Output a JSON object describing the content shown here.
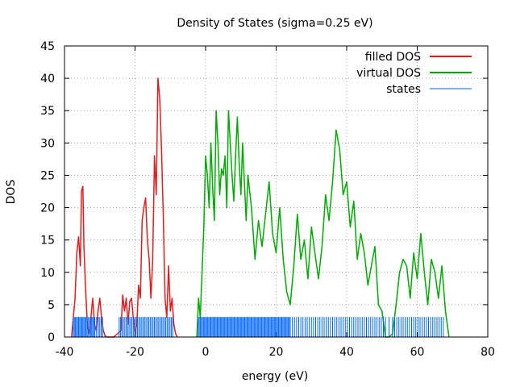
{
  "chart_data": {
    "type": "line",
    "title": "Density of States (sigma=0.25 eV)",
    "xlabel": "energy (eV)",
    "ylabel": "DOS",
    "xlim": [
      -40,
      80
    ],
    "ylim": [
      0,
      45
    ],
    "x_ticks": [
      -40,
      -20,
      0,
      20,
      40,
      60,
      80
    ],
    "y_ticks": [
      0,
      5,
      10,
      15,
      20,
      25,
      30,
      35,
      40,
      45
    ],
    "grid": true,
    "legend_position": "top-right",
    "series": [
      {
        "name": "filled DOS",
        "color": "#e41a1c",
        "x": [
          -38,
          -37,
          -36.5,
          -36,
          -35.5,
          -35.2,
          -34.8,
          -34.5,
          -34,
          -33.5,
          -33,
          -32.5,
          -32,
          -31.5,
          -31,
          -30.5,
          -30,
          -29.5,
          -29,
          -28.5,
          -28,
          -27,
          -26,
          -25,
          -24,
          -23.5,
          -23,
          -22.5,
          -22,
          -21.5,
          -21,
          -20.5,
          -20,
          -19.5,
          -19,
          -18.5,
          -18,
          -17.5,
          -17,
          -16.5,
          -16,
          -15.5,
          -15,
          -14.5,
          -14,
          -13.5,
          -13,
          -12.5,
          -12,
          -11.5,
          -11,
          -10.5,
          -10,
          -9.5,
          -9,
          -8.5,
          -8
        ],
        "y": [
          0,
          6,
          13,
          15.5,
          11,
          22.5,
          23.3,
          14,
          7,
          2,
          0.5,
          3,
          6,
          2,
          1,
          4,
          6,
          3,
          1,
          0.2,
          0,
          0,
          0,
          0.5,
          1,
          6.5,
          4,
          6,
          2,
          5.5,
          6,
          3,
          0.5,
          2,
          8,
          6,
          18,
          20,
          21.5,
          15,
          12,
          6,
          12,
          28,
          22,
          40,
          37,
          29,
          19,
          6,
          3,
          11,
          4,
          6,
          2,
          0.5,
          0
        ]
      },
      {
        "name": "virtual DOS",
        "color": "#00aa00",
        "x": [
          -2.5,
          -2,
          -1.5,
          -1,
          -0.5,
          0,
          0.5,
          1,
          1.5,
          2,
          2.5,
          3,
          3.5,
          4,
          4.5,
          5,
          5.5,
          6,
          6.5,
          7,
          7.5,
          8,
          8.5,
          9,
          9.5,
          10,
          10.5,
          11,
          11.5,
          12,
          13,
          14,
          15,
          16,
          17,
          18,
          19,
          20,
          21,
          22,
          23,
          24,
          25,
          26,
          27,
          28,
          29,
          30,
          31,
          32,
          33,
          34,
          35,
          36,
          37,
          38,
          39,
          40,
          41,
          42,
          43,
          44,
          45,
          46,
          47,
          48,
          49,
          50,
          51,
          52,
          53,
          54,
          55,
          56,
          57,
          58,
          59,
          60,
          61,
          62,
          63,
          64,
          65,
          66,
          67,
          68,
          69
        ],
        "y": [
          0,
          6,
          3,
          10,
          17,
          28,
          25,
          20,
          30,
          23,
          18,
          35,
          30,
          22,
          26,
          25,
          28,
          20,
          35,
          30,
          25,
          21,
          28,
          34,
          27,
          22,
          30,
          24,
          18,
          25,
          20,
          12,
          18,
          14,
          19,
          24,
          16,
          13,
          20,
          12,
          7,
          5,
          11,
          19,
          12,
          15,
          9,
          17,
          13,
          9,
          14,
          22,
          18,
          24,
          32,
          29,
          22,
          24,
          17,
          21,
          12,
          16,
          13,
          8,
          11,
          14,
          5,
          4,
          0,
          0,
          0.5,
          5,
          10,
          12,
          11,
          6,
          13,
          9,
          16,
          10,
          5,
          12,
          10,
          6,
          11,
          4,
          0
        ]
      },
      {
        "name": "states",
        "color": "#0066ff",
        "type": "impulse",
        "height": 3.1,
        "x": [
          -37.5,
          -37.2,
          -36.9,
          -36.6,
          -36.3,
          -36.0,
          -35.7,
          -35.4,
          -35.1,
          -34.8,
          -34.5,
          -34.2,
          -33.9,
          -33.6,
          -33.3,
          -32.9,
          -32.6,
          -32.3,
          -32.0,
          -31.7,
          -31.4,
          -30.9,
          -30.4,
          -30.0,
          -29.6,
          -29.2,
          -24.5,
          -24.1,
          -23.7,
          -23.3,
          -22.9,
          -22.5,
          -22.1,
          -21.7,
          -21.3,
          -20.9,
          -20.5,
          -20.1,
          -19.7,
          -19.3,
          -18.9,
          -18.5,
          -18.1,
          -17.7,
          -17.3,
          -16.9,
          -16.5,
          -16.1,
          -15.7,
          -15.3,
          -14.9,
          -14.5,
          -14.1,
          -13.7,
          -13.3,
          -12.9,
          -12.5,
          -12.1,
          -11.7,
          -11.3,
          -10.9,
          -10.5,
          -10.1,
          -9.7,
          -9.3,
          -2.1,
          -1.8,
          -1.5,
          -1.2,
          -0.9,
          -0.6,
          -0.3,
          0,
          0.3,
          0.6,
          0.9,
          1.2,
          1.5,
          1.8,
          2.1,
          2.4,
          2.7,
          3.0,
          3.3,
          3.6,
          3.9,
          4.2,
          4.5,
          4.8,
          5.1,
          5.4,
          5.7,
          6.0,
          6.3,
          6.6,
          6.9,
          7.2,
          7.5,
          7.8,
          8.1,
          8.4,
          8.7,
          9.0,
          9.3,
          9.6,
          9.9,
          10.2,
          10.5,
          10.8,
          11.1,
          11.4,
          11.7,
          12.0,
          12.3,
          12.6,
          12.9,
          13.2,
          13.5,
          13.8,
          14.1,
          14.4,
          14.7,
          15.0,
          15.3,
          15.6,
          15.9,
          16.2,
          16.5,
          16.8,
          17.1,
          17.4,
          17.7,
          18.0,
          18.3,
          18.6,
          18.9,
          19.2,
          19.5,
          19.8,
          20.1,
          20.4,
          20.7,
          21.0,
          21.3,
          21.6,
          21.9,
          22.2,
          22.5,
          22.8,
          23.1,
          23.4,
          23.7,
          24.0,
          24.6,
          25.2,
          25.8,
          26.4,
          27.0,
          27.6,
          28.2,
          28.8,
          29.4,
          30.0,
          30.6,
          31.2,
          31.8,
          32.4,
          33.0,
          33.6,
          34.2,
          34.8,
          35.4,
          36.0,
          36.6,
          37.2,
          37.8,
          38.4,
          39.0,
          39.6,
          40.2,
          40.8,
          41.4,
          42.0,
          42.6,
          43.2,
          43.8,
          44.4,
          45.0,
          45.6,
          46.2,
          46.8,
          47.4,
          48.0,
          48.6,
          49.2,
          49.8,
          50.4,
          51.0,
          52.0,
          53.0,
          53.6,
          54.2,
          54.8,
          55.4,
          56.0,
          56.6,
          57.2,
          57.8,
          58.4,
          59.0,
          59.6,
          60.2,
          60.8,
          61.4,
          62.0,
          62.6,
          63.2,
          63.8,
          64.4,
          65.0,
          65.6,
          66.2,
          66.8,
          67.4
        ]
      }
    ]
  }
}
